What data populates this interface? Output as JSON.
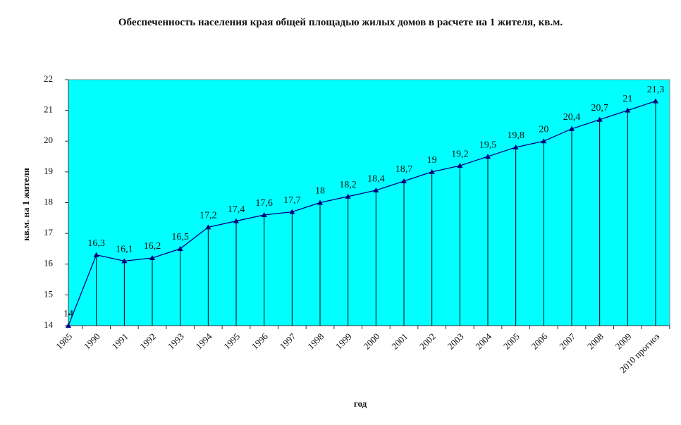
{
  "chart_data": {
    "type": "line",
    "title": "Обеспеченность населения края общей площадью жилых домов в расчете на 1 жителя, кв.м.",
    "xlabel": "год",
    "ylabel": "кв.м. на 1 жителя",
    "categories": [
      "1985",
      "1990",
      "1991",
      "1992",
      "1993",
      "1994",
      "1995",
      "1996",
      "1997",
      "1998",
      "1999",
      "2000",
      "2001",
      "2002",
      "2003",
      "2004",
      "2005",
      "2006",
      "2007",
      "2008",
      "2009",
      "2010 прогноз"
    ],
    "values": [
      14,
      16.3,
      16.1,
      16.2,
      16.5,
      17.2,
      17.4,
      17.6,
      17.7,
      18,
      18.2,
      18.4,
      18.7,
      19,
      19.2,
      19.5,
      19.8,
      20,
      20.4,
      20.7,
      21,
      21.3
    ],
    "value_labels": [
      "14",
      "16,3",
      "16,1",
      "16,2",
      "16,5",
      "17,2",
      "17,4",
      "17,6",
      "17,7",
      "18",
      "18,2",
      "18,4",
      "18,7",
      "19",
      "19,2",
      "19,5",
      "19,8",
      "20",
      "20,4",
      "20,7",
      "21",
      "21,3"
    ],
    "color": "#000080",
    "background": "#00ffff",
    "drop_lines": true,
    "ylim": [
      14,
      22
    ],
    "yticks": [
      14,
      15,
      16,
      17,
      18,
      19,
      20,
      21,
      22
    ]
  }
}
